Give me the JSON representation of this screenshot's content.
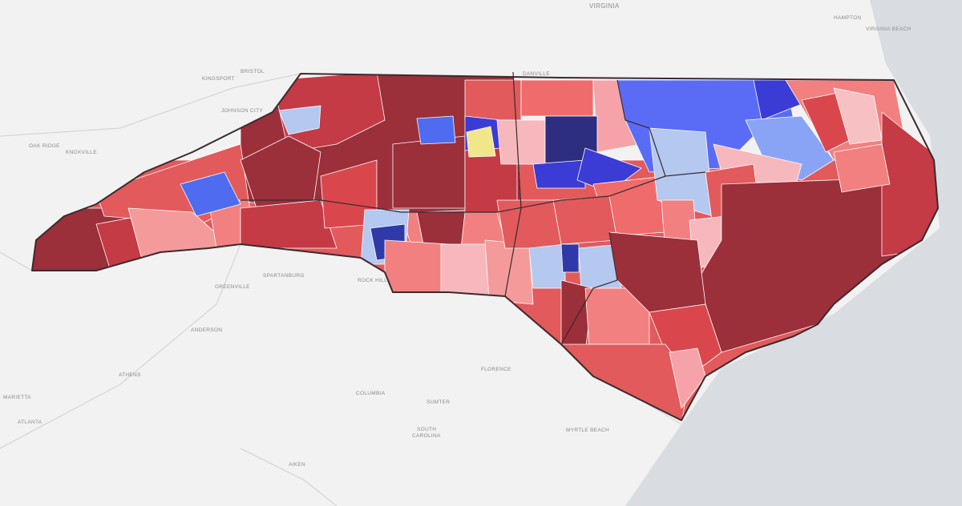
{
  "map_labels": [
    "VIRGINIA",
    "HAMPTON",
    "VIRGINIA BEACH",
    "DANVILLE",
    "BRISTOL",
    "KINGSPORT",
    "JOHNSON CITY",
    "OAK RIDGE",
    "KNOXVILLE",
    "GREENVILLE",
    "SPARTANBURG",
    "ROCK HILL",
    "ANDERSON",
    "ATHENS",
    "MARIETTA",
    "ATLANTA",
    "COLUMBIA",
    "SUMTER",
    "FLORENCE",
    "SOUTH",
    "CAROLINA",
    "MYRTLE BEACH",
    "AIKEN"
  ]
}
